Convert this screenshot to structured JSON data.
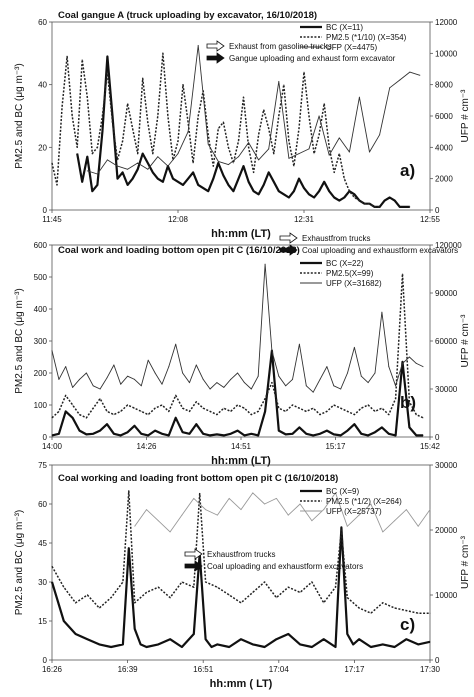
{
  "chart_data": [
    {
      "type": "line",
      "title": "Coal gangue A (truck uploading by excavator, 16/10/2018)",
      "panel_label": "a)",
      "xlabel": "hh:mm (LT)",
      "ylabel_left": "PM2.5 and BC (μg m⁻³)",
      "ylabel_right": "UFP # cm⁻³",
      "ylim_left": [
        0,
        60
      ],
      "ylim_right": [
        0,
        12000
      ],
      "yticks_left": [
        "0",
        "20",
        "40",
        "60"
      ],
      "yticks_right": [
        "0",
        "2000",
        "4000",
        "6000",
        "8000",
        "10000",
        "12000"
      ],
      "xticks": [
        "11:45",
        "12:08",
        "12:31",
        "12:55"
      ],
      "xrange_min": [
        705,
        780
      ],
      "arrow_legend": [
        "Exhaust from gasoline trucks",
        "Gangue uploading and exhaust form excavator"
      ],
      "series": [
        {
          "name": "BC (X=11)",
          "axis": "left",
          "style": "solid-bold",
          "x": [
            710,
            711,
            712,
            713,
            714,
            715,
            716,
            717,
            718,
            719,
            720,
            721,
            722,
            723,
            724,
            725,
            726,
            727,
            728,
            729,
            730,
            731,
            732,
            733,
            734,
            735,
            736,
            737,
            738,
            739,
            740,
            741,
            742,
            743,
            744,
            745,
            746,
            747,
            748,
            749,
            750,
            751,
            752,
            753,
            754,
            755,
            756,
            757,
            758,
            759,
            760,
            761,
            762,
            763,
            764,
            765,
            766,
            767,
            768,
            769,
            770,
            771,
            772,
            773,
            774,
            775,
            776
          ],
          "y": [
            18,
            9,
            17,
            6,
            8,
            25,
            49,
            30,
            10,
            12,
            8,
            10,
            13,
            18,
            15,
            12,
            10,
            9,
            14,
            10,
            9,
            8,
            10,
            12,
            8,
            7,
            6,
            10,
            15,
            11,
            8,
            6,
            10,
            14,
            9,
            6,
            5,
            8,
            12,
            9,
            6,
            5,
            4,
            6,
            10,
            7,
            5,
            4,
            6,
            9,
            6,
            4,
            3,
            4,
            6,
            5,
            3,
            2,
            2,
            1,
            1,
            3,
            4,
            3,
            1,
            1,
            1
          ]
        },
        {
          "name": "PM2.5 (*1/10) (X=354)",
          "axis": "left",
          "style": "dotted",
          "x": [
            705,
            706,
            707,
            708,
            709,
            710,
            711,
            712,
            713,
            714,
            715,
            716,
            717,
            718,
            719,
            720,
            721,
            722,
            723,
            724,
            725,
            726,
            727,
            728,
            729,
            730,
            731,
            732,
            733,
            734,
            735,
            736,
            737,
            738,
            739,
            740,
            741,
            742,
            743,
            744,
            745,
            746,
            747,
            748,
            749,
            750,
            751,
            752,
            753,
            754,
            755,
            756,
            757,
            758,
            759,
            760,
            761,
            762,
            763,
            764,
            765,
            766,
            767,
            768,
            769,
            770
          ],
          "y": [
            15,
            8,
            33,
            49,
            30,
            20,
            48,
            36,
            18,
            20,
            30,
            44,
            28,
            16,
            22,
            34,
            26,
            18,
            42,
            28,
            18,
            30,
            50,
            30,
            16,
            22,
            40,
            28,
            15,
            30,
            38,
            24,
            14,
            26,
            28,
            20,
            15,
            22,
            36,
            20,
            12,
            24,
            32,
            26,
            18,
            30,
            40,
            22,
            14,
            26,
            44,
            30,
            18,
            24,
            34,
            20,
            12,
            18,
            10,
            6,
            4,
            3,
            2,
            2,
            1,
            1
          ]
        },
        {
          "name": "UFP (X=4475)",
          "axis": "right",
          "style": "solid-thin",
          "x": [
            712,
            714,
            716,
            718,
            720,
            722,
            724,
            726,
            728,
            730,
            732,
            734,
            736,
            738,
            740,
            742,
            744,
            746,
            748,
            750,
            752,
            754,
            756,
            758,
            760,
            762,
            764,
            766,
            768,
            770,
            772,
            774,
            776,
            778
          ],
          "y": [
            2500,
            2300,
            3200,
            2800,
            2600,
            3000,
            2600,
            3400,
            2800,
            3600,
            5000,
            10500,
            4200,
            3100,
            2900,
            3400,
            4300,
            3200,
            3900,
            8200,
            3300,
            3600,
            3900,
            6000,
            3500,
            4600,
            3700,
            7200,
            3700,
            4800,
            7800,
            8300,
            8800,
            8600
          ]
        }
      ]
    },
    {
      "type": "line",
      "title": "Coal work  and loading bottom open pit C (16/10/2018)",
      "panel_label": "b)",
      "xlabel": "hh:mm (LT)",
      "ylabel_left": "PM2.5 and BC (μg m⁻³)",
      "ylabel_right": "UFP # cm⁻³",
      "ylim_left": [
        0,
        600
      ],
      "ylim_right": [
        0,
        120000
      ],
      "yticks_left": [
        "0",
        "100",
        "200",
        "300",
        "400",
        "500",
        "600"
      ],
      "yticks_right": [
        "0",
        "30000",
        "60000",
        "90000",
        "120000"
      ],
      "xticks": [
        "14:00",
        "14:26",
        "14:51",
        "15:17",
        "15:42"
      ],
      "xrange_min": [
        840,
        950
      ],
      "arrow_legend": [
        "Exhaustfrom trucks",
        "Coal uploading and exhaustform excavators"
      ],
      "series": [
        {
          "name": "BC (X=22)",
          "axis": "left",
          "style": "solid-bold",
          "x": [
            840,
            842,
            844,
            846,
            848,
            850,
            852,
            854,
            856,
            858,
            860,
            862,
            864,
            866,
            868,
            870,
            872,
            874,
            876,
            878,
            880,
            882,
            884,
            886,
            888,
            890,
            892,
            894,
            896,
            898,
            900,
            902,
            904,
            906,
            908,
            910,
            912,
            914,
            916,
            918,
            920,
            922,
            924,
            926,
            928,
            930,
            932,
            934,
            936,
            938,
            940,
            942,
            944,
            946,
            948
          ],
          "y": [
            5,
            10,
            80,
            60,
            20,
            8,
            10,
            20,
            40,
            10,
            5,
            15,
            35,
            10,
            5,
            20,
            10,
            5,
            60,
            15,
            10,
            40,
            10,
            5,
            8,
            5,
            10,
            20,
            5,
            10,
            5,
            80,
            270,
            20,
            8,
            10,
            30,
            10,
            5,
            10,
            20,
            8,
            5,
            20,
            40,
            10,
            5,
            15,
            30,
            10,
            5,
            235,
            30,
            5,
            5
          ]
        },
        {
          "name": "PM2.5(X=99)",
          "axis": "left",
          "style": "dotted",
          "x": [
            840,
            842,
            844,
            846,
            848,
            850,
            852,
            854,
            856,
            858,
            860,
            862,
            864,
            866,
            868,
            870,
            872,
            874,
            876,
            878,
            880,
            882,
            884,
            886,
            888,
            890,
            892,
            894,
            896,
            898,
            900,
            902,
            904,
            906,
            908,
            910,
            912,
            914,
            916,
            918,
            920,
            922,
            924,
            926,
            928,
            930,
            932,
            934,
            936,
            938,
            940,
            942,
            944,
            946,
            948
          ],
          "y": [
            60,
            80,
            130,
            100,
            70,
            60,
            90,
            120,
            80,
            70,
            80,
            100,
            90,
            80,
            70,
            90,
            100,
            80,
            130,
            90,
            80,
            110,
            90,
            80,
            70,
            90,
            80,
            100,
            90,
            70,
            80,
            120,
            170,
            90,
            80,
            100,
            90,
            80,
            90,
            70,
            80,
            100,
            90,
            80,
            70,
            90,
            100,
            80,
            90,
            70,
            120,
            510,
            110,
            70,
            60
          ]
        },
        {
          "name": "UFP (X=31682)",
          "axis": "right",
          "style": "solid-thin",
          "x": [
            840,
            842,
            844,
            846,
            848,
            850,
            852,
            854,
            856,
            858,
            860,
            862,
            864,
            866,
            868,
            870,
            872,
            874,
            876,
            878,
            880,
            882,
            884,
            886,
            888,
            890,
            892,
            894,
            896,
            898,
            900,
            902,
            904,
            906,
            908,
            910,
            912,
            914,
            916,
            918,
            920,
            922,
            924,
            926,
            928,
            930,
            932,
            934,
            936,
            938,
            940,
            942,
            944,
            946,
            948
          ],
          "y": [
            54000,
            36000,
            44000,
            31000,
            36000,
            40000,
            32000,
            30000,
            37000,
            45000,
            33000,
            38000,
            36000,
            32000,
            48000,
            40000,
            33000,
            44000,
            58000,
            40000,
            34000,
            45000,
            36000,
            30000,
            34000,
            31000,
            36000,
            40000,
            34000,
            30000,
            38000,
            108000,
            54000,
            38000,
            32000,
            36000,
            58000,
            32000,
            28000,
            36000,
            44000,
            32000,
            30000,
            40000,
            56000,
            38000,
            34000,
            40000,
            78000,
            44000,
            32000,
            46000,
            50000,
            46000,
            44000
          ]
        }
      ]
    },
    {
      "type": "line",
      "title": "Coal working and loading front bottom open pit C (16/10/2018)",
      "panel_label": "c)",
      "xlabel": "hh:mm ( LT)",
      "ylabel_left": "PM2.5 and BC (μg m⁻³)",
      "ylabel_right": "UFP # cm⁻³",
      "ylim_left": [
        0,
        75
      ],
      "ylim_right": [
        0,
        35000
      ],
      "yticks_left": [
        "0",
        "15",
        "30",
        "45",
        "60",
        "75"
      ],
      "yticks_right": [
        "0",
        "10000",
        "20000",
        "30000"
      ],
      "xticks": [
        "16:26",
        "16:39",
        "16:51",
        "17:04",
        "17:17",
        "17:30"
      ],
      "xrange_min": [
        986,
        1050
      ],
      "arrow_legend": [
        "Exhaustfrom trucks",
        "Coal uploading and exhaustform excavators"
      ],
      "series": [
        {
          "name": "BC (X=9)",
          "axis": "left",
          "style": "solid-bold",
          "x": [
            986,
            988,
            990,
            992,
            994,
            996,
            998,
            999,
            1000,
            1001,
            1002,
            1004,
            1006,
            1008,
            1010,
            1011,
            1012,
            1013,
            1014,
            1016,
            1018,
            1020,
            1022,
            1024,
            1026,
            1028,
            1030,
            1032,
            1034,
            1035,
            1036,
            1037,
            1038,
            1040,
            1042,
            1044,
            1046,
            1048,
            1050
          ],
          "y": [
            30,
            15,
            10,
            8,
            6,
            5,
            6,
            43,
            12,
            6,
            5,
            6,
            8,
            5,
            10,
            41,
            8,
            5,
            6,
            5,
            8,
            6,
            5,
            8,
            10,
            6,
            5,
            8,
            5,
            51,
            10,
            6,
            8,
            5,
            6,
            5,
            8,
            6,
            7
          ]
        },
        {
          "name": "PM2.5 (*1/2) (X=264)",
          "axis": "left",
          "style": "dotted",
          "x": [
            986,
            988,
            990,
            992,
            994,
            996,
            998,
            999,
            1000,
            1002,
            1004,
            1006,
            1008,
            1010,
            1011,
            1012,
            1014,
            1016,
            1018,
            1020,
            1022,
            1024,
            1026,
            1028,
            1030,
            1032,
            1034,
            1035,
            1036,
            1038,
            1040,
            1042,
            1044,
            1046,
            1048,
            1050
          ],
          "y": [
            36,
            28,
            22,
            25,
            20,
            24,
            30,
            65,
            22,
            26,
            28,
            24,
            30,
            28,
            64,
            30,
            28,
            25,
            22,
            26,
            30,
            24,
            28,
            26,
            30,
            22,
            28,
            50,
            24,
            20,
            18,
            22,
            20,
            19,
            18,
            18
          ]
        },
        {
          "name": "UFP (X=25737)",
          "axis": "right",
          "style": "solid-light",
          "x": [
            1000,
            1002,
            1004,
            1006,
            1008,
            1010,
            1012,
            1014,
            1016,
            1018,
            1020,
            1022,
            1024,
            1026,
            1028,
            1030,
            1032,
            1034,
            1036,
            1038,
            1040,
            1042,
            1044,
            1046,
            1048,
            1050
          ],
          "y": [
            24000,
            27000,
            25000,
            23000,
            26000,
            29000,
            27000,
            26000,
            29000,
            27000,
            30000,
            28000,
            29000,
            26000,
            28000,
            25000,
            27000,
            30000,
            24000,
            26000,
            28000,
            23000,
            25000,
            27000,
            24000,
            27000
          ]
        }
      ]
    }
  ]
}
